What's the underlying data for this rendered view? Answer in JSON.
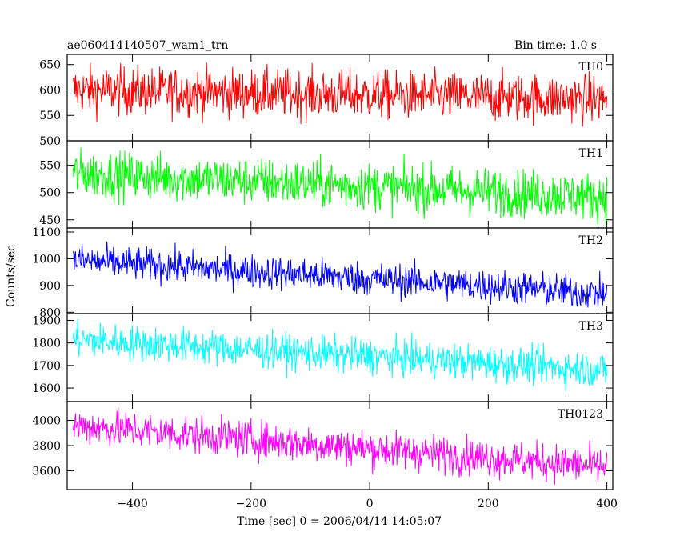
{
  "title_left": "ae060414140507_wam1_trn",
  "title_right": "Bin time: 1.0 s",
  "ylabel": "Counts/sec",
  "xlabel": "Time [sec] 0 = 2006/04/14 14:05:07",
  "chart_data": {
    "type": "line",
    "xlim": [
      -510,
      410
    ],
    "x_ticks": [
      -400,
      -200,
      0,
      200,
      400
    ],
    "x_tick_labels": [
      "−400",
      "−200",
      "0",
      "200",
      "400"
    ],
    "x_range": [
      -500,
      400
    ],
    "bin_seconds": 1.0,
    "panels": [
      {
        "name": "TH0",
        "color": "#ff0000",
        "ylim": [
          500,
          670
        ],
        "yticks": [
          500,
          550,
          600,
          650
        ],
        "trend_start": 600,
        "trend_end": 582,
        "noise": 24
      },
      {
        "name": "TH1",
        "color": "#00ff00",
        "ylim": [
          435,
          595
        ],
        "yticks": [
          450,
          500,
          550
        ],
        "trend_start": 535,
        "trend_end": 492,
        "noise": 22
      },
      {
        "name": "TH2",
        "color": "#0000ff",
        "ylim": [
          795,
          1115
        ],
        "yticks": [
          800,
          900,
          1000,
          1100
        ],
        "trend_start": 995,
        "trend_end": 870,
        "noise": 32
      },
      {
        "name": "TH3",
        "color": "#00ffff",
        "ylim": [
          1540,
          1930
        ],
        "yticks": [
          1600,
          1700,
          1800,
          1900
        ],
        "trend_start": 1815,
        "trend_end": 1680,
        "noise": 40
      },
      {
        "name": "TH0123",
        "color": "#ff00ff",
        "ylim": [
          3450,
          4150
        ],
        "yticks": [
          3600,
          3800,
          4000
        ],
        "trend_start": 3960,
        "trend_end": 3630,
        "noise": 75
      }
    ]
  }
}
